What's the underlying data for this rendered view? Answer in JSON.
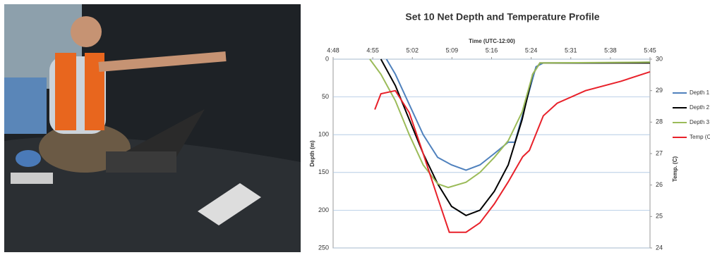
{
  "chart_data": {
    "type": "line",
    "title": "Set 10 Net Depth and Temperature Profile",
    "x_label": "Time (UTC-12:00)",
    "y_label": "Depth (m)",
    "y2_label": "Temp. (C)",
    "xlim": [
      288,
      345
    ],
    "xticks": [
      {
        "value": 288,
        "label": "4:48"
      },
      {
        "value": 295.125,
        "label": "4:55"
      },
      {
        "value": 302.25,
        "label": "5:02"
      },
      {
        "value": 309.375,
        "label": "5:09"
      },
      {
        "value": 316.5,
        "label": "5:16"
      },
      {
        "value": 323.625,
        "label": "5:24"
      },
      {
        "value": 330.75,
        "label": "5:31"
      },
      {
        "value": 337.875,
        "label": "5:38"
      },
      {
        "value": 345,
        "label": "5:45"
      }
    ],
    "ylim": [
      0,
      250
    ],
    "y_inverted": true,
    "yticks": [
      0,
      50,
      100,
      150,
      200,
      250
    ],
    "y2lim": [
      24,
      30
    ],
    "y2ticks": [
      24,
      25,
      26,
      27,
      28,
      29,
      30
    ],
    "grid": true,
    "legend": "right",
    "series": [
      {
        "name": "Depth 1",
        "color": "#4f81bd",
        "x": [
          297.6,
          299.2,
          301.7,
          304.2,
          306.8,
          309.3,
          311.9,
          314.4,
          317.0,
          319.5,
          320.7,
          322.6,
          324.5,
          325.8,
          329.6,
          336,
          345
        ],
        "values": [
          0,
          20,
          60,
          100,
          130,
          140,
          147,
          140,
          125,
          110,
          110,
          60,
          10,
          5,
          5,
          5,
          4
        ]
      },
      {
        "name": "Depth 2",
        "color": "#000000",
        "x": [
          296.6,
          299.2,
          301.7,
          304.2,
          306.8,
          309.3,
          311.9,
          314.4,
          317.0,
          319.5,
          322,
          323.9,
          325.2,
          329.6,
          345
        ],
        "values": [
          0,
          35,
          80,
          125,
          165,
          195,
          207,
          200,
          175,
          140,
          80,
          20,
          5,
          5,
          5
        ]
      },
      {
        "name": "Depth 3",
        "color": "#9bbb59",
        "x": [
          294.6,
          296.6,
          299.2,
          301.7,
          304.2,
          306.8,
          308.7,
          311.9,
          314.4,
          317.0,
          319.5,
          322,
          323.9,
          325.2,
          345
        ],
        "values": [
          0,
          20,
          55,
          100,
          140,
          165,
          170,
          163,
          150,
          130,
          108,
          70,
          20,
          5,
          4
        ]
      },
      {
        "name": "Temp (C",
        "color": "#e8212a",
        "axis": "y2",
        "x": [
          295.5,
          296.6,
          299.2,
          301.7,
          304.2,
          306.8,
          308.9,
          311.9,
          314.4,
          317.0,
          319.5,
          322.1,
          323.3,
          325.8,
          328.3,
          333.4,
          339.8,
          345
        ],
        "values": [
          28.4,
          28.9,
          29.0,
          28.3,
          27.0,
          25.6,
          24.5,
          24.5,
          24.8,
          25.4,
          26.1,
          26.9,
          27.1,
          28.2,
          28.6,
          29.0,
          29.3,
          29.6
        ]
      }
    ]
  }
}
